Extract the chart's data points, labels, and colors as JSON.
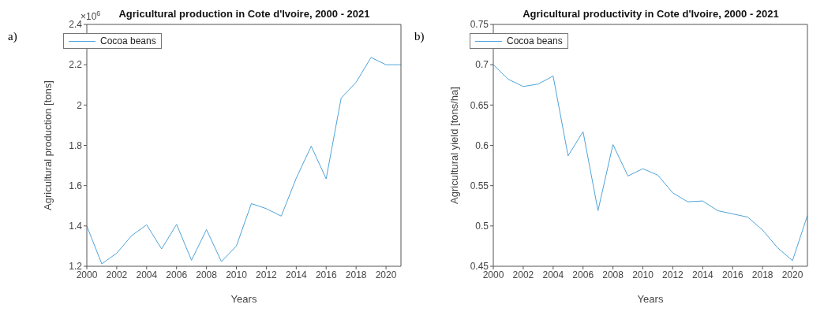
{
  "chart_data": [
    {
      "type": "line",
      "title": "Agricultural production in Cote d'Ivoire, 2000 - 2021",
      "xlabel": "Years",
      "ylabel": "Agricultural production [tons]",
      "annotations": [
        "a)",
        "×10$^{6}$"
      ],
      "x": [
        2000,
        2001,
        2002,
        2003,
        2004,
        2005,
        2006,
        2007,
        2008,
        2009,
        2010,
        2011,
        2012,
        2013,
        2014,
        2015,
        2016,
        2017,
        2018,
        2019,
        2020,
        2021
      ],
      "series": [
        {
          "name": "Cocoa beans",
          "color": "#4fa3da",
          "values": [
            1.4,
            1.212,
            1.265,
            1.352,
            1.406,
            1.286,
            1.408,
            1.23,
            1.382,
            1.223,
            1.301,
            1.511,
            1.486,
            1.449,
            1.637,
            1.796,
            1.634,
            2.034,
            2.113,
            2.236,
            2.2,
            2.2
          ]
        }
      ],
      "xlim": [
        2000,
        2021
      ],
      "xticks": [
        2000,
        2002,
        2004,
        2006,
        2008,
        2010,
        2012,
        2014,
        2016,
        2018,
        2020
      ],
      "ylim": [
        1.2,
        2.4
      ],
      "yticks": [
        1.2,
        1.4,
        1.6,
        1.8,
        2,
        2.2,
        2.4
      ],
      "legend": "top left",
      "marker": "none",
      "line_style": "solid",
      "grid": false
    },
    {
      "type": "line",
      "title": "Agricultural productivity in Cote d'Ivoire, 2000 - 2021",
      "xlabel": "Years",
      "ylabel": "Agricultural yield [tons/ha]",
      "annotations": [
        "b)"
      ],
      "x": [
        2000,
        2001,
        2002,
        2003,
        2004,
        2005,
        2006,
        2007,
        2008,
        2009,
        2010,
        2011,
        2012,
        2013,
        2014,
        2015,
        2016,
        2017,
        2018,
        2019,
        2020,
        2021
      ],
      "series": [
        {
          "name": "Cocoa beans",
          "color": "#4fa3da",
          "values": [
            0.7,
            0.682,
            0.673,
            0.676,
            0.686,
            0.587,
            0.617,
            0.519,
            0.601,
            0.562,
            0.571,
            0.563,
            0.541,
            0.53,
            0.531,
            0.519,
            0.515,
            0.511,
            0.495,
            0.473,
            0.457,
            0.513
          ]
        }
      ],
      "xlim": [
        2000,
        2021
      ],
      "xticks": [
        2000,
        2002,
        2004,
        2006,
        2008,
        2010,
        2012,
        2014,
        2016,
        2018,
        2020
      ],
      "ylim": [
        0.45,
        0.75
      ],
      "yticks": [
        0.45,
        0.5,
        0.55,
        0.6,
        0.65,
        0.7,
        0.75
      ],
      "legend": "top left",
      "marker": "none",
      "line_style": "solid",
      "grid": false
    }
  ]
}
